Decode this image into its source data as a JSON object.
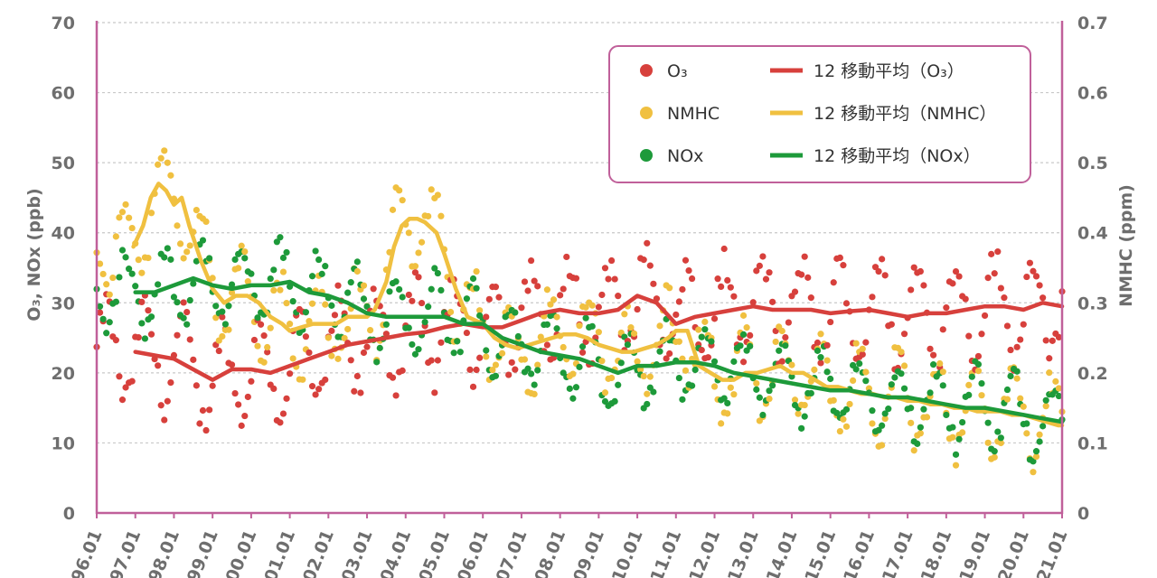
{
  "chart_data": {
    "type": "scatter",
    "x_labels": [
      "96.01",
      "97.01",
      "98.01",
      "99.01",
      "00.01",
      "01.01",
      "02.01",
      "03.01",
      "04.01",
      "05.01",
      "06.01",
      "07.01",
      "08.01",
      "09.01",
      "10.01",
      "11.01",
      "12.01",
      "13.01",
      "14.01",
      "15.01",
      "16.01",
      "17.01",
      "18.01",
      "19.01",
      "20.01",
      "21.01"
    ],
    "ylabel_left": "O₃, NOx (ppb)",
    "ylabel_right": "NMHC (ppm)",
    "ylim_left": [
      0,
      70
    ],
    "ylim_right": [
      0,
      0.7
    ],
    "yticks_left": [
      "0",
      "10",
      "20",
      "30",
      "40",
      "50",
      "60",
      "70"
    ],
    "yticks_right": [
      "0",
      "0.1",
      "0.2",
      "0.3",
      "0.4",
      "0.5",
      "0.6",
      "0.7"
    ],
    "colors": {
      "o3": "#d7403c",
      "nmhc": "#f0c040",
      "nox": "#1d9a3a",
      "axis": "#c0609a",
      "grid": "#c8c8c8"
    },
    "legend": {
      "o3_points": "O₃",
      "nmhc_points": "NMHC",
      "nox_points": "NOx",
      "o3_ma": "12 移動平均（O₃）",
      "nmhc_ma": "12 移動平均（NMHC）",
      "nox_ma": "12 移動平均（NOx）"
    },
    "moving_average": {
      "o3": {
        "axis": "left",
        "x": [
          1997.0,
          1997.5,
          1998.0,
          1998.5,
          1999.0,
          1999.5,
          2000.0,
          2000.5,
          2001.0,
          2001.5,
          2002.0,
          2002.5,
          2003.0,
          2003.5,
          2004.0,
          2004.5,
          2005.0,
          2005.5,
          2006.0,
          2006.5,
          2007.0,
          2007.5,
          2008.0,
          2008.5,
          2009.0,
          2009.5,
          2010.0,
          2010.5,
          2011.0,
          2011.5,
          2012.0,
          2012.5,
          2013.0,
          2013.5,
          2014.0,
          2014.5,
          2015.0,
          2015.5,
          2016.0,
          2016.5,
          2017.0,
          2017.5,
          2018.0,
          2018.5,
          2019.0,
          2019.5,
          2020.0,
          2020.5,
          2021.0
        ],
        "y": [
          23,
          22.5,
          22,
          20.5,
          19,
          20.5,
          20.5,
          20,
          21,
          22,
          23,
          24,
          24.5,
          25,
          25.5,
          25.8,
          26.5,
          27,
          26.5,
          26.5,
          27.5,
          28.5,
          29,
          28.5,
          28.5,
          29,
          31,
          30,
          27,
          28,
          28.5,
          29,
          29.5,
          29,
          29,
          29,
          28.5,
          28.8,
          29,
          28.5,
          28,
          28.5,
          28.5,
          29,
          29.5,
          29.5,
          29,
          30,
          29.5
        ]
      },
      "nmhc": {
        "axis": "right",
        "x": [
          1996.95,
          1997.2,
          1997.4,
          1997.6,
          1997.8,
          1998.0,
          1998.2,
          1998.4,
          1998.7,
          1999.0,
          1999.3,
          1999.6,
          1999.9,
          2000.2,
          2000.5,
          2000.8,
          2001.0,
          2001.3,
          2001.6,
          2001.9,
          2002.2,
          2002.5,
          2002.8,
          2003.0,
          2003.2,
          2003.5,
          2003.7,
          2003.9,
          2004.1,
          2004.3,
          2004.5,
          2004.8,
          2005.0,
          2005.3,
          2005.6,
          2006.0,
          2006.3,
          2006.6,
          2006.9,
          2007.2,
          2007.5,
          2007.8,
          2008.1,
          2008.4,
          2008.7,
          2009.0,
          2009.3,
          2009.6,
          2009.9,
          2010.2,
          2010.5,
          2010.8,
          2011.0,
          2011.3,
          2011.6,
          2011.9,
          2012.2,
          2012.5,
          2012.8,
          2013.1,
          2013.4,
          2013.7,
          2014.0,
          2014.3,
          2014.6,
          2014.9,
          2015.2,
          2015.5,
          2015.8,
          2016.1,
          2016.4,
          2016.7,
          2017.0,
          2017.3,
          2017.6,
          2017.9,
          2018.2,
          2018.5,
          2018.8,
          2019.1,
          2019.4,
          2019.7,
          2020.0,
          2020.3,
          2020.6,
          2020.9,
          2021.0
        ],
        "y": [
          0.38,
          0.41,
          0.45,
          0.47,
          0.46,
          0.44,
          0.45,
          0.41,
          0.36,
          0.32,
          0.3,
          0.31,
          0.31,
          0.3,
          0.28,
          0.27,
          0.26,
          0.265,
          0.27,
          0.27,
          0.27,
          0.28,
          0.28,
          0.28,
          0.29,
          0.33,
          0.38,
          0.41,
          0.42,
          0.42,
          0.415,
          0.4,
          0.37,
          0.32,
          0.28,
          0.27,
          0.25,
          0.24,
          0.235,
          0.24,
          0.245,
          0.25,
          0.255,
          0.255,
          0.25,
          0.24,
          0.235,
          0.23,
          0.23,
          0.235,
          0.24,
          0.25,
          0.26,
          0.26,
          0.21,
          0.2,
          0.19,
          0.19,
          0.2,
          0.2,
          0.205,
          0.21,
          0.2,
          0.2,
          0.19,
          0.18,
          0.18,
          0.175,
          0.17,
          0.17,
          0.165,
          0.165,
          0.16,
          0.16,
          0.155,
          0.155,
          0.15,
          0.15,
          0.145,
          0.145,
          0.145,
          0.14,
          0.14,
          0.135,
          0.13,
          0.125,
          0.125
        ]
      },
      "nox": {
        "axis": "left",
        "x": [
          1997.0,
          1997.5,
          1998.0,
          1998.5,
          1999.0,
          1999.5,
          2000.0,
          2000.5,
          2001.0,
          2001.5,
          2002.0,
          2002.5,
          2003.0,
          2003.5,
          2004.0,
          2004.5,
          2005.0,
          2005.5,
          2006.0,
          2006.5,
          2007.0,
          2007.5,
          2008.0,
          2008.5,
          2009.0,
          2009.5,
          2010.0,
          2010.5,
          2011.0,
          2011.5,
          2012.0,
          2012.5,
          2013.0,
          2013.5,
          2014.0,
          2014.5,
          2015.0,
          2015.5,
          2016.0,
          2016.5,
          2017.0,
          2017.5,
          2018.0,
          2018.5,
          2019.0,
          2019.5,
          2020.0,
          2020.5,
          2021.0
        ],
        "y": [
          31.5,
          31.5,
          32.5,
          33.5,
          32.5,
          32,
          32.5,
          32.5,
          33,
          31.5,
          31,
          30,
          28.5,
          28,
          28,
          28,
          28,
          27,
          27,
          25,
          24,
          23,
          22.5,
          22,
          21,
          20,
          21,
          21,
          21.5,
          21.5,
          21,
          20,
          19.5,
          19,
          18.5,
          18,
          17.5,
          17.5,
          17,
          16.5,
          16.5,
          16,
          15.5,
          15,
          15,
          14.5,
          14,
          13.5,
          13
        ]
      }
    }
  }
}
